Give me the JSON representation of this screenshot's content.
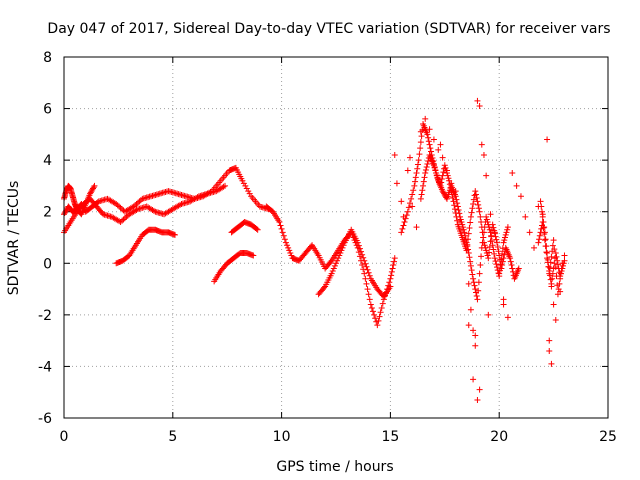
{
  "chart_data": {
    "type": "scatter",
    "title": "Day 047 of 2017, Sidereal Day-to-day VTEC variation (SDTVAR) for receiver vars",
    "xlabel": "GPS time / hours",
    "ylabel": "SDTVAR / TECUs",
    "xlim": [
      0,
      25
    ],
    "ylim": [
      -6,
      8
    ],
    "xticks": [
      0,
      5,
      10,
      15,
      20,
      25
    ],
    "yticks": [
      -6,
      -4,
      -2,
      0,
      2,
      4,
      6,
      8
    ],
    "grid": true,
    "marker": "+",
    "series": [
      {
        "name": "SDTVAR",
        "color": "#ff0000",
        "tracks": [
          {
            "x": [
              0.0,
              0.2,
              0.4,
              0.6,
              0.8,
              1.0,
              1.3,
              1.6,
              2.0,
              2.4,
              2.8,
              3.2,
              3.6,
              4.0,
              4.4,
              4.8,
              5.2,
              5.6,
              6.0,
              6.4,
              6.8,
              7.2,
              7.6,
              7.9,
              8.2,
              8.6,
              9.0,
              9.4
            ],
            "y": [
              1.9,
              2.2,
              2.0,
              2.1,
              2.3,
              2.0,
              2.2,
              2.4,
              2.5,
              2.3,
              2.0,
              2.2,
              2.5,
              2.6,
              2.7,
              2.8,
              2.7,
              2.6,
              2.5,
              2.6,
              2.8,
              3.2,
              3.6,
              3.7,
              3.2,
              2.6,
              2.2,
              2.1
            ]
          },
          {
            "x": [
              0.0,
              0.3,
              0.6,
              0.9,
              1.2,
              1.5,
              1.8,
              2.2,
              2.6,
              3.0,
              3.4,
              3.8,
              4.2,
              4.6,
              5.0,
              5.4,
              5.8,
              6.2,
              6.6,
              7.0,
              7.4
            ],
            "y": [
              1.2,
              1.6,
              2.0,
              2.3,
              2.5,
              2.2,
              1.9,
              1.8,
              1.6,
              1.9,
              2.1,
              2.2,
              2.0,
              1.9,
              2.1,
              2.3,
              2.4,
              2.6,
              2.7,
              2.8,
              3.0
            ]
          },
          {
            "x": [
              0.0,
              0.1,
              0.2,
              0.3,
              0.4,
              0.5,
              0.6,
              0.8,
              1.0,
              1.2,
              1.4
            ],
            "y": [
              2.5,
              2.8,
              3.0,
              2.9,
              2.6,
              2.3,
              2.1,
              1.9,
              2.3,
              2.7,
              3.0
            ]
          },
          {
            "x": [
              2.4,
              2.7,
              3.0,
              3.3,
              3.6,
              3.9,
              4.2,
              4.5,
              4.8,
              5.1
            ],
            "y": [
              0.0,
              0.1,
              0.3,
              0.7,
              1.1,
              1.3,
              1.3,
              1.2,
              1.2,
              1.1
            ]
          },
          {
            "x": [
              6.9,
              7.2,
              7.5,
              7.8,
              8.1,
              8.4,
              8.7
            ],
            "y": [
              -0.7,
              -0.3,
              0.0,
              0.2,
              0.4,
              0.4,
              0.3
            ]
          },
          {
            "x": [
              7.7,
              8.0,
              8.3,
              8.6,
              8.9
            ],
            "y": [
              1.2,
              1.4,
              1.6,
              1.5,
              1.3
            ]
          },
          {
            "x": [
              9.3,
              9.6,
              9.9,
              10.2,
              10.5,
              10.8,
              11.1,
              11.4,
              11.7,
              12.0,
              12.3,
              12.6,
              12.9,
              13.2,
              13.5,
              13.8,
              14.1,
              14.4,
              14.7,
              15.0,
              15.2
            ],
            "y": [
              2.2,
              2.0,
              1.6,
              0.8,
              0.2,
              0.1,
              0.4,
              0.7,
              0.3,
              -0.2,
              0.1,
              0.5,
              0.9,
              1.2,
              0.6,
              -0.4,
              -1.6,
              -2.4,
              -1.4,
              -0.6,
              0.2
            ]
          },
          {
            "x": [
              11.7,
              12.0,
              12.3,
              12.6,
              12.9,
              13.2,
              13.5,
              13.8,
              14.1,
              14.4,
              14.7,
              15.0
            ],
            "y": [
              -1.2,
              -0.9,
              -0.4,
              0.2,
              0.8,
              1.3,
              0.8,
              0.1,
              -0.6,
              -1.0,
              -1.3,
              -0.9
            ]
          },
          {
            "x": [
              15.5,
              15.8,
              16.1,
              16.3,
              16.5,
              16.7,
              16.9,
              17.1,
              17.3,
              17.5,
              17.7,
              17.9,
              18.1,
              18.3,
              18.5,
              18.7,
              18.9,
              19.1,
              19.3,
              19.5,
              19.7,
              19.9,
              20.1,
              20.3,
              20.5,
              20.7,
              20.9
            ],
            "y": [
              1.2,
              2.0,
              3.0,
              4.0,
              5.4,
              5.0,
              4.2,
              3.5,
              3.0,
              3.8,
              3.2,
              2.4,
              1.5,
              1.0,
              0.5,
              1.8,
              2.8,
              2.0,
              0.8,
              0.2,
              1.5,
              0.8,
              -0.2,
              0.6,
              0.2,
              -0.6,
              -0.2
            ]
          },
          {
            "x": [
              16.4,
              16.6,
              16.8,
              17.0,
              17.2,
              17.4,
              17.6,
              17.8,
              18.0,
              18.2,
              18.4,
              18.6,
              18.8,
              19.0,
              19.2,
              19.4,
              19.6,
              19.8,
              20.0,
              20.2,
              20.4
            ],
            "y": [
              2.5,
              3.5,
              4.2,
              3.8,
              3.2,
              2.8,
              2.5,
              3.0,
              2.6,
              1.8,
              1.2,
              0.4,
              -0.6,
              -1.4,
              0.6,
              1.8,
              1.2,
              0.2,
              -0.5,
              0.8,
              1.4
            ]
          },
          {
            "x": [
              21.8,
              22.0,
              22.2,
              22.4,
              22.6,
              22.8,
              23.0
            ],
            "y": [
              0.8,
              1.6,
              0.2,
              -0.8,
              0.4,
              -0.5,
              0.1
            ]
          },
          {
            "x": [
              21.9,
              22.1,
              22.3,
              22.5,
              22.7,
              22.9
            ],
            "y": [
              2.4,
              1.2,
              -0.4,
              0.9,
              -1.2,
              0.0
            ]
          }
        ],
        "scatter": {
          "x": [
            15.2,
            15.3,
            15.5,
            15.6,
            15.8,
            15.9,
            16.0,
            16.2,
            16.6,
            16.8,
            17.0,
            17.2,
            17.4,
            17.6,
            17.8,
            18.0,
            18.2,
            18.4,
            18.6,
            18.7,
            18.8,
            18.9,
            19.0,
            19.1,
            19.2,
            19.3,
            19.4,
            19.6,
            19.8,
            20.0,
            20.2,
            20.4,
            20.6,
            20.8,
            21.0,
            21.2,
            21.4,
            21.6,
            21.8,
            22.0,
            22.2,
            22.3,
            22.4,
            22.5,
            22.6,
            22.8,
            23.0,
            16.4,
            17.3,
            18.8,
            19.0,
            19.1,
            22.3,
            18.6,
            18.9,
            19.5,
            20.2,
            22.4
          ],
          "y": [
            4.2,
            3.1,
            2.4,
            1.8,
            3.6,
            4.1,
            2.2,
            1.4,
            5.6,
            5.2,
            4.8,
            4.4,
            4.1,
            3.6,
            3.1,
            2.8,
            1.6,
            0.9,
            -0.8,
            -1.8,
            -2.6,
            -3.2,
            6.3,
            6.1,
            4.6,
            4.2,
            3.4,
            1.9,
            1.2,
            -0.4,
            -1.4,
            -2.1,
            3.5,
            3.0,
            2.6,
            1.8,
            1.2,
            0.6,
            2.2,
            1.9,
            4.8,
            -3.4,
            -3.9,
            -1.6,
            -2.2,
            -1.1,
            0.3,
            5.1,
            4.6,
            -4.5,
            -5.3,
            -4.9,
            -3.0,
            -2.4,
            -2.8,
            -2.0,
            -1.6,
            -0.9
          ]
        }
      }
    ]
  }
}
